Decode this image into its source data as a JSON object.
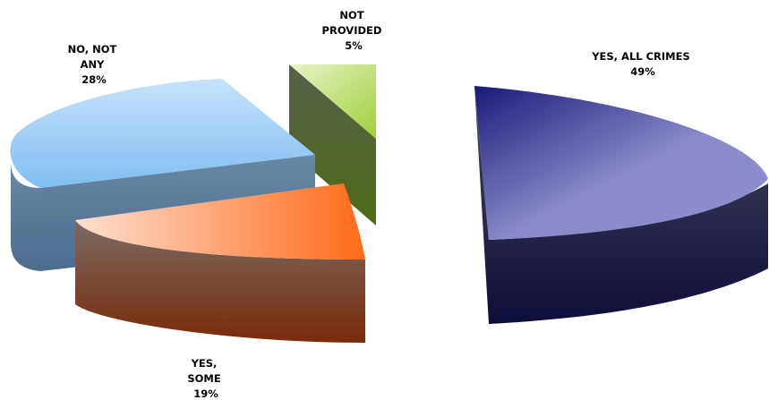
{
  "chart_data": {
    "type": "pie",
    "style": "3d-exploded",
    "categories": [
      "YES, ALL CRIMES",
      "YES, SOME",
      "NO, NOT ANY",
      "NOT PROVIDED"
    ],
    "values": [
      49,
      19,
      28,
      5
    ],
    "value_labels": [
      "49%",
      "19%",
      "28%",
      "5%"
    ],
    "colors": [
      "#1a1a7a",
      "#ff6a1a",
      "#8fc8f5",
      "#a8d040"
    ]
  }
}
